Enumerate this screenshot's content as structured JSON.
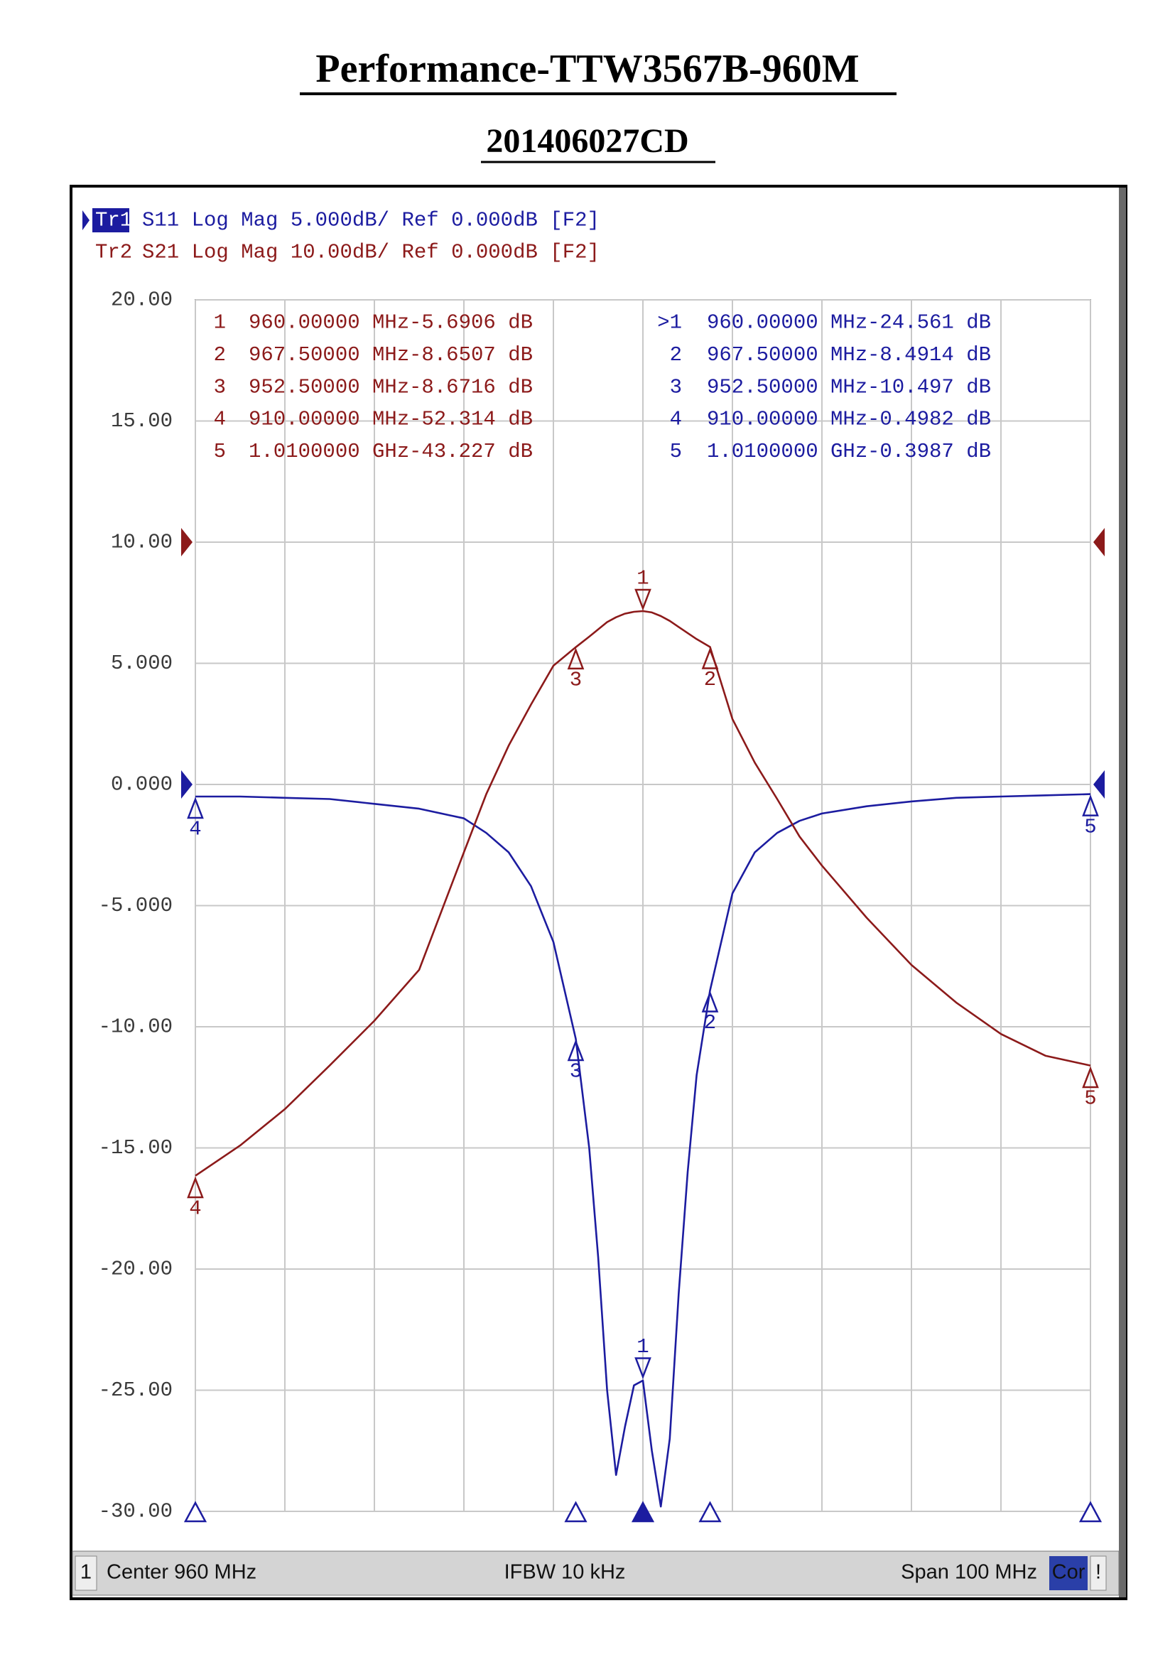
{
  "title": "Performance-TTW3567B-960M",
  "subtitle": "201406027CD",
  "chart_data": {
    "type": "line",
    "xlim": [
      910,
      1010
    ],
    "xticks": [
      910,
      920,
      930,
      940,
      950,
      960,
      970,
      980,
      990,
      1000,
      1010
    ],
    "ylim": [
      -30,
      20
    ],
    "yticks": [
      {
        "value": 20,
        "label": "20.00"
      },
      {
        "value": 15,
        "label": "15.00"
      },
      {
        "value": 10,
        "label": "10.00"
      },
      {
        "value": 5,
        "label": "5.000"
      },
      {
        "value": 0,
        "label": "0.000"
      },
      {
        "value": -5,
        "label": "-5.000"
      },
      {
        "value": -10,
        "label": "-10.00"
      },
      {
        "value": -15,
        "label": "-15.00"
      },
      {
        "value": -20,
        "label": "-20.00"
      },
      {
        "value": -25,
        "label": "-25.00"
      },
      {
        "value": -30,
        "label": "-30.00"
      }
    ],
    "y2lim": [
      -80,
      20
    ],
    "grid": true,
    "x": [
      910,
      915,
      920,
      925,
      930,
      935,
      940,
      942.5,
      945,
      947.5,
      950,
      952.5,
      954,
      955,
      956,
      957,
      958,
      959,
      960,
      961,
      962,
      963,
      964,
      965,
      966,
      967.5,
      970,
      972.5,
      975,
      977.5,
      980,
      985,
      990,
      995,
      1000,
      1005,
      1010
    ],
    "series": [
      {
        "name": "Tr1",
        "header": "S11 Log Mag 5.000dB/ Ref 0.000dB [F2]",
        "color": "#1c1ca0",
        "axis": "y",
        "ref_level": 0,
        "values": [
          -0.5,
          -0.5,
          -0.55,
          -0.6,
          -0.8,
          -1.0,
          -1.4,
          -2.0,
          -2.8,
          -4.2,
          -6.5,
          -10.5,
          -15,
          -19.5,
          -25,
          -28.5,
          -26.5,
          -24.8,
          -24.6,
          -27.5,
          -29.8,
          -27,
          -21,
          -16,
          -12,
          -8.5,
          -4.5,
          -2.8,
          -2.0,
          -1.5,
          -1.2,
          -0.9,
          -0.7,
          -0.55,
          -0.5,
          -0.45,
          -0.4
        ],
        "markers": [
          {
            "flag": ">1",
            "id": "1",
            "stimulus": {
              "value": 960,
              "label": "960.00000 MHz"
            },
            "response": {
              "value": -24.561,
              "label": "-24.561 dB"
            }
          },
          {
            "id": "2",
            "stimulus": {
              "value": 967.5,
              "label": "967.50000 MHz"
            },
            "response": {
              "value": -8.4914,
              "label": "-8.4914 dB"
            }
          },
          {
            "id": "3",
            "stimulus": {
              "value": 952.5,
              "label": "952.50000 MHz"
            },
            "response": {
              "value": -10.497,
              "label": "-10.497 dB"
            }
          },
          {
            "id": "4",
            "stimulus": {
              "value": 910,
              "label": "910.00000 MHz"
            },
            "response": {
              "value": -0.4982,
              "label": "-0.4982 dB"
            }
          },
          {
            "id": "5",
            "stimulus": {
              "value": 1010,
              "label": "1.0100000 GHz"
            },
            "response": {
              "value": -0.3987,
              "label": "-0.3987 dB"
            }
          }
        ]
      },
      {
        "name": "Tr2",
        "header": "S21 Log Mag 10.00dB/ Ref 0.000dB [F2]",
        "color": "#8c1a1a",
        "axis": "y2",
        "ref_level": 0,
        "values": [
          -52.3,
          -49.8,
          -46.8,
          -43.2,
          -39.5,
          -35.3,
          -25.6,
          -20.8,
          -16.8,
          -13.4,
          -10.2,
          -8.67,
          -7.8,
          -7.2,
          -6.6,
          -6.2,
          -5.9,
          -5.75,
          -5.69,
          -5.8,
          -6.1,
          -6.5,
          -7.0,
          -7.5,
          -8.0,
          -8.65,
          -14.6,
          -18.2,
          -21.2,
          -24.3,
          -26.7,
          -31,
          -34.9,
          -38,
          -40.6,
          -42.4,
          -43.2
        ],
        "markers": [
          {
            "id": "1",
            "stimulus": {
              "value": 960,
              "label": "960.00000 MHz"
            },
            "response": {
              "value": -5.6906,
              "label": "-5.6906 dB"
            }
          },
          {
            "id": "2",
            "stimulus": {
              "value": 967.5,
              "label": "967.50000 MHz"
            },
            "response": {
              "value": -8.6507,
              "label": "-8.6507 dB"
            }
          },
          {
            "id": "3",
            "stimulus": {
              "value": 952.5,
              "label": "952.50000 MHz"
            },
            "response": {
              "value": -8.6716,
              "label": "-8.6716 dB"
            }
          },
          {
            "id": "4",
            "stimulus": {
              "value": 910,
              "label": "910.00000 MHz"
            },
            "response": {
              "value": -52.314,
              "label": "-52.314 dB"
            }
          },
          {
            "id": "5",
            "stimulus": {
              "value": 1010,
              "label": "1.0100000 GHz"
            },
            "response": {
              "value": -43.227,
              "label": "-43.227 dB"
            }
          }
        ]
      }
    ],
    "footer": {
      "channel": "1",
      "center": "Center 960 MHz",
      "ifbw": "IFBW 10 kHz",
      "span": "Span 100 MHz",
      "correction": "Cor",
      "warning": "!"
    }
  }
}
